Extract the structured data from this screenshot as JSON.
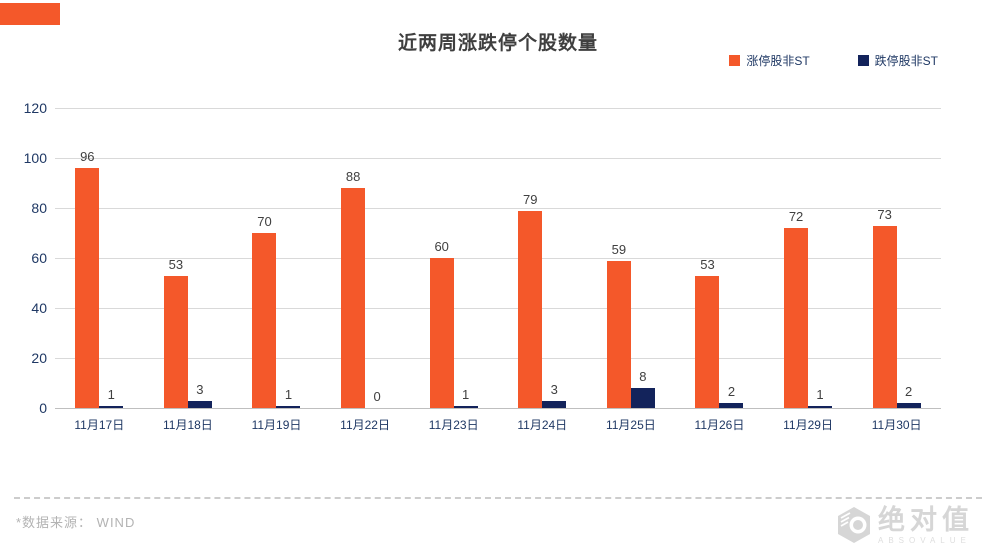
{
  "page": {
    "title": "近两周涨跌停个股数量",
    "source_note": "*数据来源：  WIND",
    "logo": {
      "cn": "绝对值",
      "en": "ABSOVALUE"
    }
  },
  "colors": {
    "up_bar": "#f4582a",
    "down_bar": "#13235b",
    "axis_label": "#1f3864",
    "value_label": "#404040",
    "gridline": "#d9d9d9",
    "corner_block": "#f4582a"
  },
  "legend": [
    {
      "label": "涨停股非ST",
      "color": "#f4582a"
    },
    {
      "label": "跌停股非ST",
      "color": "#13235b"
    }
  ],
  "chart_data": {
    "type": "bar",
    "title": "近两周涨跌停个股数量",
    "categories": [
      "11月17日",
      "11月18日",
      "11月19日",
      "11月22日",
      "11月23日",
      "11月24日",
      "11月25日",
      "11月26日",
      "11月29日",
      "11月30日"
    ],
    "series": [
      {
        "name": "涨停股非ST",
        "color": "#f4582a",
        "values": [
          96,
          53,
          70,
          88,
          60,
          79,
          59,
          53,
          72,
          73
        ]
      },
      {
        "name": "跌停股非ST",
        "color": "#13235b",
        "values": [
          1,
          3,
          1,
          0,
          1,
          3,
          8,
          2,
          1,
          2
        ]
      }
    ],
    "xlabel": "",
    "ylabel": "",
    "ylim": [
      0,
      120
    ],
    "yticks": [
      0,
      20,
      40,
      60,
      80,
      100,
      120
    ],
    "grid": true,
    "data_labels": true,
    "legend_position": "top-right"
  }
}
